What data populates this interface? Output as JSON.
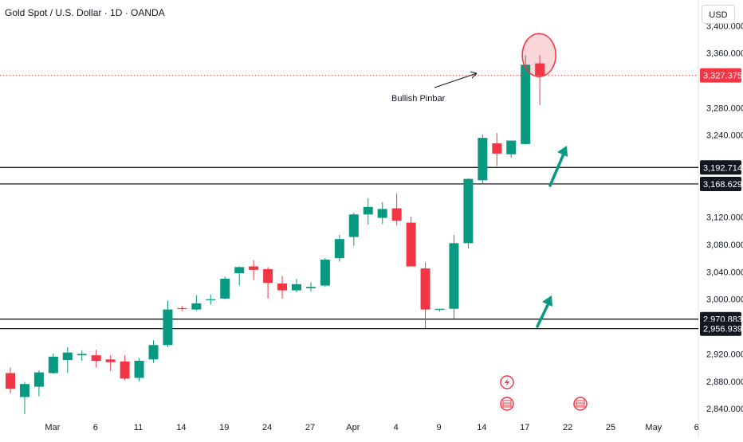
{
  "header": {
    "title": "Gold Spot / U.S. Dollar · 1D · OANDA",
    "currency": "USD"
  },
  "colors": {
    "up": "#089981",
    "down": "#f23645",
    "text": "#131722",
    "axis_text": "#131722",
    "level_line": "#000000",
    "price_line": "#f23645"
  },
  "chart_data": {
    "type": "candlestick",
    "ylim": [
      2818,
      3412
    ],
    "y_ticks": [
      "2,840.000",
      "2,880.000",
      "2,920.000",
      "3,000.000",
      "3,040.000",
      "3,080.000",
      "3,120.000",
      "3,240.000",
      "3,280.000",
      "3,360.000",
      "3,400.000"
    ],
    "y_tick_values": [
      2840,
      2880,
      2920,
      3000,
      3040,
      3080,
      3120,
      3240,
      3280,
      3360,
      3400
    ],
    "x_labels": [
      "Mar",
      "6",
      "11",
      "14",
      "19",
      "24",
      "27",
      "Apr",
      "4",
      "9",
      "14",
      "17",
      "22",
      "25",
      "May",
      "6"
    ],
    "x_label_index": [
      2,
      5,
      8,
      11,
      14,
      17,
      20,
      23,
      26,
      29,
      32,
      35,
      38,
      41,
      44,
      47
    ],
    "candles": [
      {
        "o": 2892,
        "h": 2900,
        "l": 2862,
        "c": 2869
      },
      {
        "o": 2857,
        "h": 2879,
        "l": 2832,
        "c": 2876
      },
      {
        "o": 2872,
        "h": 2896,
        "l": 2858,
        "c": 2893
      },
      {
        "o": 2892,
        "h": 2921,
        "l": 2891,
        "c": 2916
      },
      {
        "o": 2911,
        "h": 2930,
        "l": 2892,
        "c": 2922
      },
      {
        "o": 2918,
        "h": 2925,
        "l": 2910,
        "c": 2920
      },
      {
        "o": 2918,
        "h": 2926,
        "l": 2900,
        "c": 2910
      },
      {
        "o": 2912,
        "h": 2918,
        "l": 2895,
        "c": 2908
      },
      {
        "o": 2909,
        "h": 2918,
        "l": 2882,
        "c": 2884
      },
      {
        "o": 2885,
        "h": 2914,
        "l": 2880,
        "c": 2910
      },
      {
        "o": 2912,
        "h": 2940,
        "l": 2907,
        "c": 2933
      },
      {
        "o": 2933,
        "h": 2998,
        "l": 2930,
        "c": 2985
      },
      {
        "o": 2987,
        "h": 2990,
        "l": 2983,
        "c": 2986
      },
      {
        "o": 2985,
        "h": 3006,
        "l": 2983,
        "c": 2994
      },
      {
        "o": 2999,
        "h": 3007,
        "l": 2992,
        "c": 3000
      },
      {
        "o": 3001,
        "h": 3033,
        "l": 3000,
        "c": 3030
      },
      {
        "o": 3038,
        "h": 3048,
        "l": 3020,
        "c": 3047
      },
      {
        "o": 3048,
        "h": 3057,
        "l": 3028,
        "c": 3043
      },
      {
        "o": 3044,
        "h": 3047,
        "l": 3001,
        "c": 3024
      },
      {
        "o": 3023,
        "h": 3034,
        "l": 3001,
        "c": 3013
      },
      {
        "o": 3013,
        "h": 3030,
        "l": 3010,
        "c": 3022
      },
      {
        "o": 3016,
        "h": 3025,
        "l": 3011,
        "c": 3018
      },
      {
        "o": 3020,
        "h": 3060,
        "l": 3018,
        "c": 3058
      },
      {
        "o": 3060,
        "h": 3094,
        "l": 3055,
        "c": 3088
      },
      {
        "o": 3091,
        "h": 3127,
        "l": 3078,
        "c": 3124
      },
      {
        "o": 3124,
        "h": 3148,
        "l": 3109,
        "c": 3135
      },
      {
        "o": 3119,
        "h": 3142,
        "l": 3110,
        "c": 3132
      },
      {
        "o": 3133,
        "h": 3155,
        "l": 3108,
        "c": 3115
      },
      {
        "o": 3112,
        "h": 3121,
        "l": 3050,
        "c": 3048
      },
      {
        "o": 3045,
        "h": 3054,
        "l": 2957,
        "c": 2985
      },
      {
        "o": 2986,
        "h": 2986,
        "l": 2982,
        "c": 2986
      },
      {
        "o": 2986,
        "h": 3094,
        "l": 2972,
        "c": 3082
      },
      {
        "o": 3082,
        "h": 3177,
        "l": 3074,
        "c": 3176
      },
      {
        "o": 3174,
        "h": 3241,
        "l": 3168,
        "c": 3236
      },
      {
        "o": 3228,
        "h": 3243,
        "l": 3195,
        "c": 3213
      },
      {
        "o": 3212,
        "h": 3230,
        "l": 3207,
        "c": 3232
      },
      {
        "o": 3227,
        "h": 3357,
        "l": 3226,
        "c": 3343
      },
      {
        "o": 3345,
        "h": 3357,
        "l": 3284,
        "c": 3327
      }
    ],
    "levels": [
      3192.714,
      3168.629,
      2970.883,
      2956.939
    ],
    "level_labels": [
      "3,192.714",
      "3,168.629",
      "2,970.883",
      "2,956.939"
    ],
    "last_price": 3327.375,
    "last_price_label": "3,327.375",
    "annotation": "Bullish Pinbar"
  }
}
